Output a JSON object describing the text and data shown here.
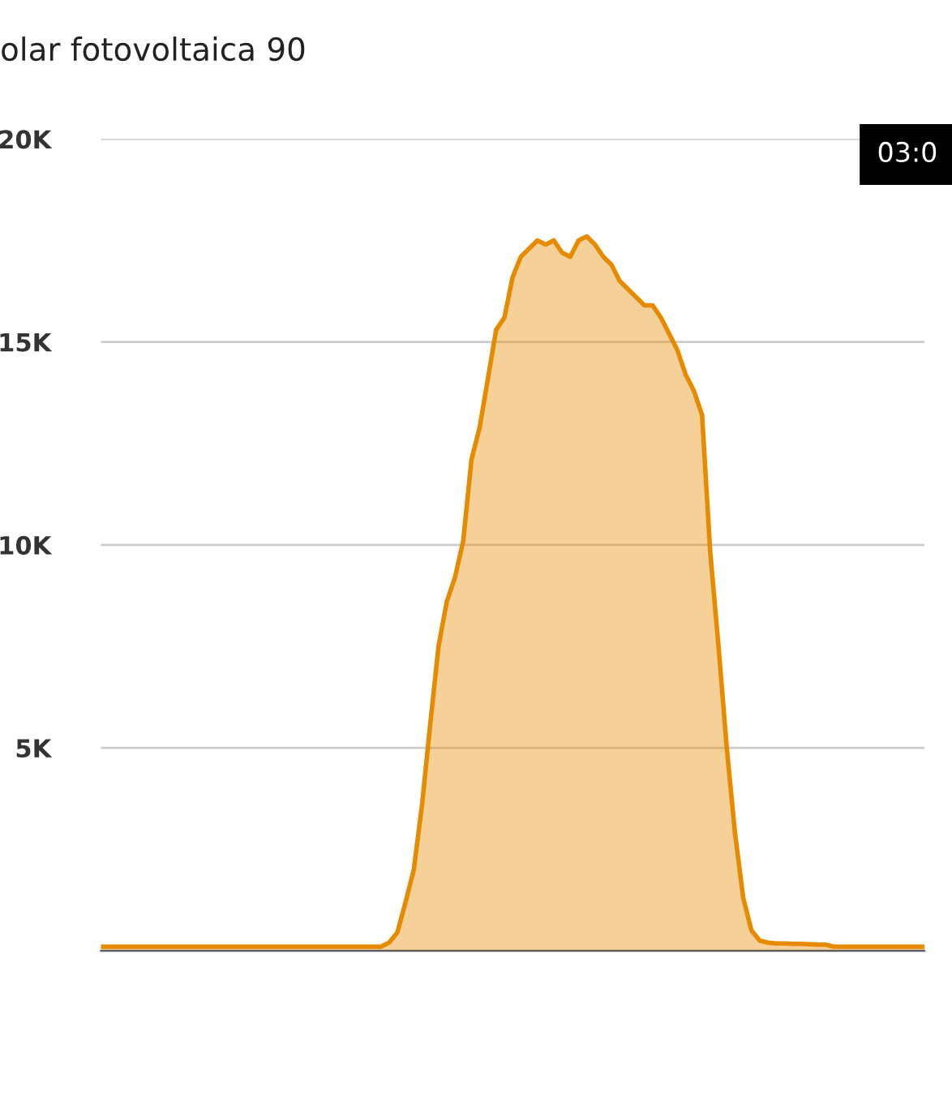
{
  "chart_data": {
    "type": "area",
    "title": "olar fotovoltaica 90",
    "annotations": [
      "03:0"
    ],
    "categories": [
      null,
      null,
      null,
      null,
      null,
      null,
      null,
      null,
      null,
      null,
      null,
      null,
      null,
      null,
      null,
      null,
      null,
      null,
      null,
      null,
      null,
      null,
      null,
      null,
      null,
      null,
      null,
      null,
      null,
      null,
      null,
      null,
      null,
      null,
      null,
      null,
      null,
      null,
      null,
      null,
      null,
      null,
      null,
      null,
      null,
      null,
      null,
      null,
      null,
      null,
      null,
      null,
      null,
      null,
      null,
      null,
      null,
      null,
      null,
      null,
      null,
      null,
      null,
      null,
      null,
      null,
      null,
      null,
      null,
      null,
      null,
      null,
      null,
      null,
      null,
      null,
      null,
      null,
      null,
      null,
      null,
      null,
      null,
      null,
      null,
      null,
      null,
      null,
      null,
      null,
      null,
      null,
      null,
      null,
      null,
      null,
      null,
      null,
      null,
      null,
      null
    ],
    "series": [
      {
        "color": "#e68a00",
        "values": [
          100,
          100,
          100,
          100,
          100,
          100,
          100,
          100,
          100,
          100,
          100,
          100,
          100,
          100,
          100,
          100,
          100,
          100,
          100,
          100,
          100,
          100,
          100,
          100,
          100,
          100,
          100,
          100,
          100,
          100,
          100,
          100,
          100,
          100,
          100,
          200,
          450,
          1200,
          2000,
          3600,
          5600,
          7500,
          8600,
          9200,
          10100,
          12100,
          12900,
          14100,
          15300,
          15600,
          16600,
          17100,
          17300,
          17500,
          17400,
          17500,
          17200,
          17100,
          17500,
          17600,
          17400,
          17100,
          16900,
          16500,
          16300,
          16100,
          15900,
          15900,
          15600,
          15200,
          14800,
          14200,
          13800,
          13200,
          9800,
          7500,
          5000,
          2900,
          1300,
          500,
          250,
          200,
          180,
          180,
          170,
          170,
          160,
          150,
          150,
          100,
          100,
          100,
          100,
          100,
          100,
          100,
          100,
          100,
          100,
          100,
          100
        ]
      }
    ],
    "ylim": [
      0,
      20000
    ],
    "yticks": [
      {
        "value": 0,
        "label": null
      },
      {
        "value": 5000,
        "label": "5K"
      },
      {
        "value": 10000,
        "label": "10K"
      },
      {
        "value": 15000,
        "label": "15K"
      },
      {
        "value": 20000,
        "label": "20K"
      }
    ],
    "grid": "y"
  }
}
